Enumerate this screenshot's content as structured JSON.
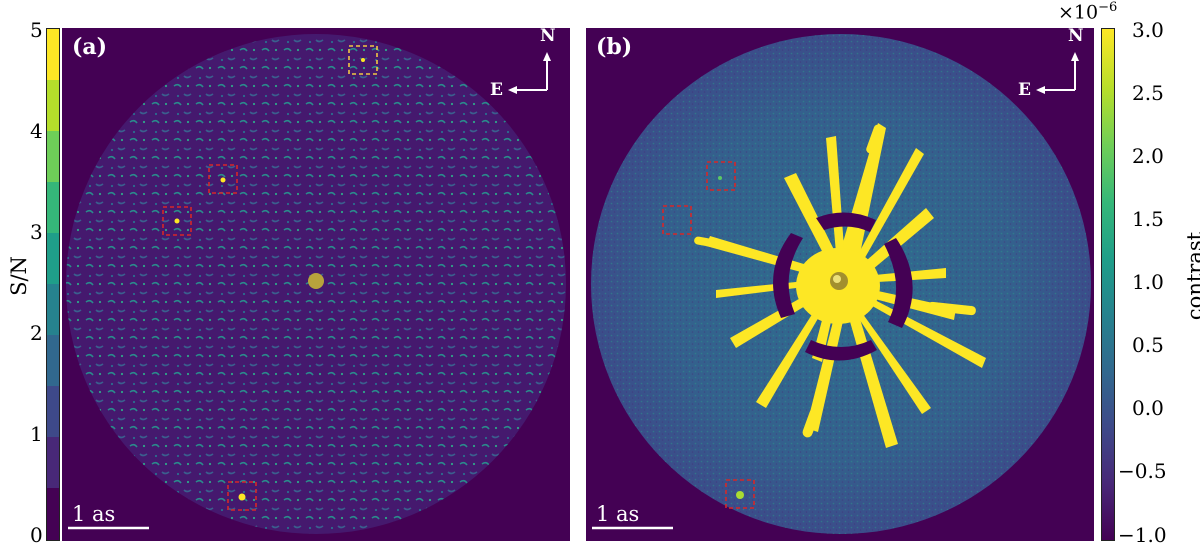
{
  "left_panel": {
    "label": "(a)",
    "scale_bar": "1 as",
    "compass": {
      "north": "N",
      "east": "E"
    },
    "colorbar": {
      "title": "S/N",
      "ticks": [
        "5",
        "4",
        "3",
        "2",
        "1",
        "0"
      ],
      "steps": [
        "#440154",
        "#472a7a",
        "#3b528b",
        "#2c718e",
        "#21908d",
        "#27ad81",
        "#5cc863",
        "#aadc32",
        "#fde725",
        "#fde725"
      ]
    }
  },
  "right_panel": {
    "label": "(b)",
    "scale_bar": "1 as",
    "compass": {
      "north": "N",
      "east": "E"
    },
    "colorbar": {
      "title": "contrast",
      "multiplier": "×10",
      "exponent": "−6",
      "ticks": [
        "3.0",
        "2.5",
        "2.0",
        "1.5",
        "1.0",
        "0.5",
        "0.0",
        "−0.5",
        "−1.0"
      ]
    }
  },
  "colors": {
    "background": "#440154",
    "noise": "#3b528b",
    "speckle": "#fde725",
    "marker_red": "#d62728",
    "marker_yellow": "#f2c744"
  }
}
